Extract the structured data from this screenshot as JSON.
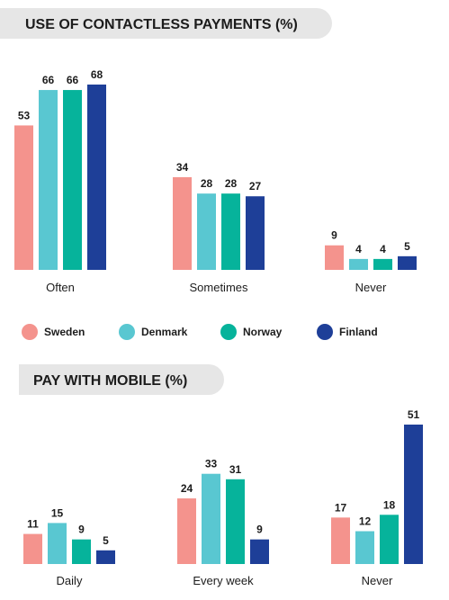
{
  "colors": {
    "Sweden": "#f4938d",
    "Denmark": "#59c7d1",
    "Norway": "#06b39b",
    "Finland": "#1e3f98",
    "title_band": "#e6e6e6"
  },
  "legend": {
    "items": [
      {
        "name": "Sweden"
      },
      {
        "name": "Denmark"
      },
      {
        "name": "Norway"
      },
      {
        "name": "Finland"
      }
    ]
  },
  "chart_data": [
    {
      "type": "bar",
      "title": "USE OF CONTACTLESS PAYMENTS (%)",
      "categories": [
        "Often",
        "Sometimes",
        "Never"
      ],
      "series": [
        {
          "name": "Sweden",
          "values": [
            53,
            34,
            9
          ]
        },
        {
          "name": "Denmark",
          "values": [
            66,
            28,
            4
          ]
        },
        {
          "name": "Norway",
          "values": [
            66,
            28,
            4
          ]
        },
        {
          "name": "Finland",
          "values": [
            68,
            27,
            5
          ]
        }
      ],
      "xlabel": "",
      "ylabel": "",
      "ylim": [
        0,
        68
      ],
      "grid": false,
      "legend": "bottom",
      "data_labels": true
    },
    {
      "type": "bar",
      "title": "PAY WITH MOBILE (%)",
      "categories": [
        "Daily",
        "Every week",
        "Never"
      ],
      "series": [
        {
          "name": "Sweden",
          "values": [
            11,
            24,
            17
          ]
        },
        {
          "name": "Denmark",
          "values": [
            15,
            33,
            12
          ]
        },
        {
          "name": "Norway",
          "values": [
            9,
            31,
            18
          ]
        },
        {
          "name": "Finland",
          "values": [
            5,
            9,
            51
          ]
        }
      ],
      "xlabel": "",
      "ylabel": "",
      "ylim": [
        0,
        51
      ],
      "grid": false,
      "legend": "none",
      "data_labels": true
    }
  ]
}
